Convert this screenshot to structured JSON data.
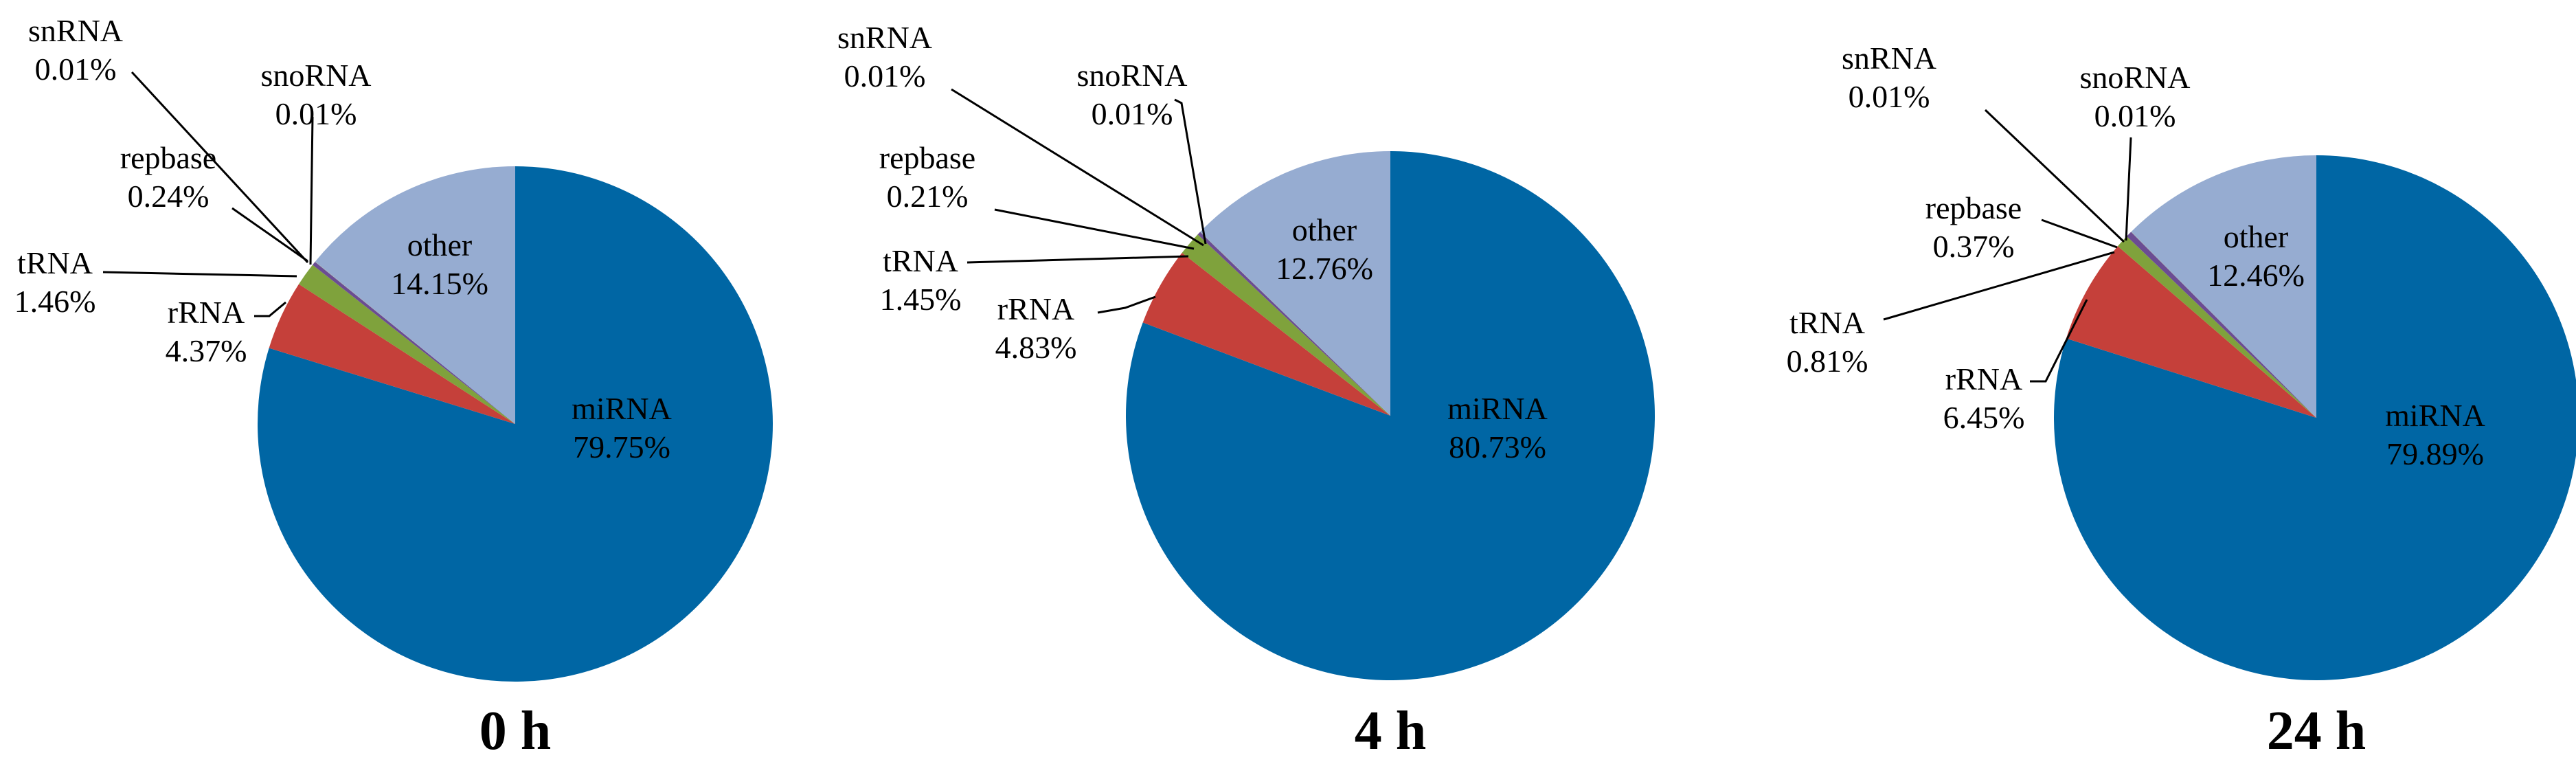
{
  "chart_data": [
    {
      "type": "pie",
      "title": "0 h",
      "slices": [
        {
          "name": "miRNA",
          "percent": 79.75,
          "label": "79.75%",
          "color": "#0066a4"
        },
        {
          "name": "rRNA",
          "percent": 4.37,
          "label": "4.37%",
          "color": "#c5403a"
        },
        {
          "name": "tRNA",
          "percent": 1.46,
          "label": "1.46%",
          "color": "#7fa23c"
        },
        {
          "name": "repbase",
          "percent": 0.24,
          "label": "0.24%",
          "color": "#6b4c93"
        },
        {
          "name": "snRNA",
          "percent": 0.01,
          "label": "0.01%",
          "color": "#2d9fbf"
        },
        {
          "name": "snoRNA",
          "percent": 0.01,
          "label": "0.01%",
          "color": "#f0912e"
        },
        {
          "name": "other",
          "percent": 14.15,
          "label": "14.15%",
          "color": "#96acd1"
        }
      ]
    },
    {
      "type": "pie",
      "title": "4 h",
      "slices": [
        {
          "name": "miRNA",
          "percent": 80.73,
          "label": "80.73%",
          "color": "#0066a4"
        },
        {
          "name": "rRNA",
          "percent": 4.83,
          "label": "4.83%",
          "color": "#c5403a"
        },
        {
          "name": "tRNA",
          "percent": 1.45,
          "label": "1.45%",
          "color": "#7fa23c"
        },
        {
          "name": "repbase",
          "percent": 0.21,
          "label": "0.21%",
          "color": "#6b4c93"
        },
        {
          "name": "snRNA",
          "percent": 0.01,
          "label": "0.01%",
          "color": "#2d9fbf"
        },
        {
          "name": "snoRNA",
          "percent": 0.01,
          "label": "0.01%",
          "color": "#f0912e"
        },
        {
          "name": "other",
          "percent": 12.76,
          "label": "12.76%",
          "color": "#96acd1"
        }
      ]
    },
    {
      "type": "pie",
      "title": "24 h",
      "slices": [
        {
          "name": "miRNA",
          "percent": 79.89,
          "label": "79.89%",
          "color": "#0066a4"
        },
        {
          "name": "rRNA",
          "percent": 6.45,
          "label": "6.45%",
          "color": "#c5403a"
        },
        {
          "name": "tRNA",
          "percent": 0.81,
          "label": "0.81%",
          "color": "#7fa23c"
        },
        {
          "name": "repbase",
          "percent": 0.37,
          "label": "0.37%",
          "color": "#6b4c93"
        },
        {
          "name": "snRNA",
          "percent": 0.01,
          "label": "0.01%",
          "color": "#2d9fbf"
        },
        {
          "name": "snoRNA",
          "percent": 0.01,
          "label": "0.01%",
          "color": "#f0912e"
        },
        {
          "name": "other",
          "percent": 12.46,
          "label": "12.46%",
          "color": "#96acd1"
        }
      ]
    }
  ]
}
